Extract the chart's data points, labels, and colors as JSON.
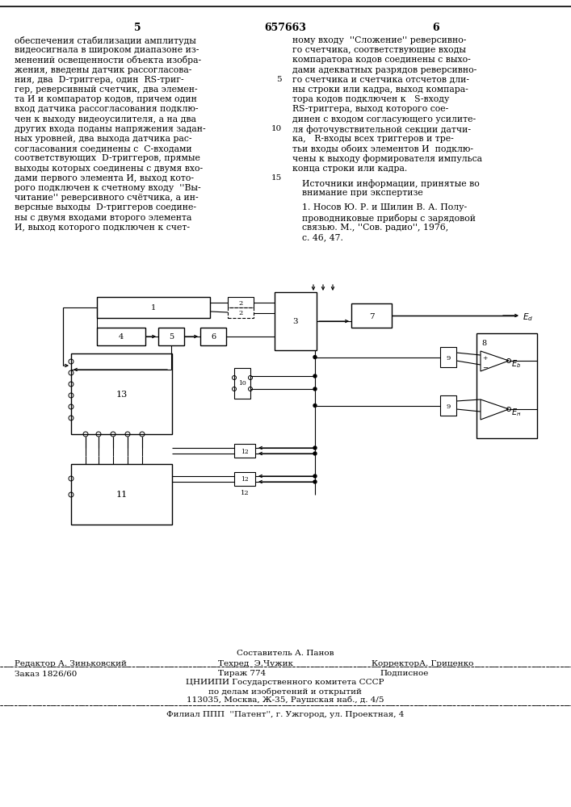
{
  "page_number_left": "5",
  "patent_number": "657663",
  "page_number_right": "6",
  "left_column_text": [
    "обеспечения стабилизации амплитуды",
    "видеосигнала в широком диапазоне из-",
    "менений освещенности объекта изобра-",
    "жения, введены датчик рассогласова-",
    "ния, два  D-триггера, один  RS-триг-",
    "гер, реверсивный счетчик, два элемен-",
    "та И и компаратор кодов, причем один",
    "вход датчика рассогласования подклю-",
    "чен к выходу видеоусилителя, а на два",
    "других входа поданы напряжения задан-",
    "ных уровней, два выхода датчика рас-",
    "согласования соединены с  С-входами",
    "соответствующих  D-триггеров, прямые",
    "выходы которых соединены с двумя вхо-",
    "дами первого элемента И, выход кото-",
    "рого подключен к счетному входу  ''Вы-",
    "читание'' реверсивного счётчика, а ин-",
    "версные выходы  D-триггеров соедине-",
    "ны с двумя входами второго элемента",
    "И, выход которого подключен к счет-"
  ],
  "line_number_5": "5",
  "line_number_10": "10",
  "line_number_15": "15",
  "right_column_text": [
    "ному входу  ''Сложение'' реверсивно-",
    "го счетчика, соответствующие входы",
    "компаратора кодов соединены с выхо-",
    "дами адекватных разрядов реверсивно-",
    "го счетчика и счетчика отсчетов дли-",
    "ны строки или кадра, выход компара-",
    "тора кодов подключен к   S-входу",
    "RS-триггера, выход которого сое-",
    "динен с входом согласующего усилите-",
    "ля фоточувствительной секции датчи-",
    "ка,   R-входы всех триггеров и тре-",
    "тьи входы обоих элементов И  подклю-",
    "чены к выходу формирователя импульса",
    "конца строки или кадра."
  ],
  "sources_header": "Источники информации, принятые во",
  "sources_header2": "внимание при экспертизе",
  "source1": "1. Носов Ю. Р. и Шилин В. А. Полу-",
  "source2": "проводниковые приборы с зарядовой",
  "source3": "связью. М., ''Сов. радио'', 1976,",
  "source4": "с. 46, 47.",
  "footer_compiler": "Составитель А. Панов",
  "footer_editor": "Редактор А. Зиньковский",
  "footer_techred": "Техред  Э.Чужик",
  "footer_corrector": "КорректорА. Гриценко",
  "footer_order": "Заказ 1826/60",
  "footer_tirazh": "Тираж 774",
  "footer_podpisnoe": "Подписное",
  "footer_cniiipi": "ЦНИИПИ Государственного комитета СССР",
  "footer_address1": "по делам изобретений и открытий",
  "footer_address2": "113035, Москва, Ж-35, Раушская наб., д. 4/5",
  "footer_filial": "Филиал ППП  ''Патент'', г. Ужгород, ул. Проектная, 4",
  "bg_color": "#ffffff",
  "text_color": "#000000"
}
